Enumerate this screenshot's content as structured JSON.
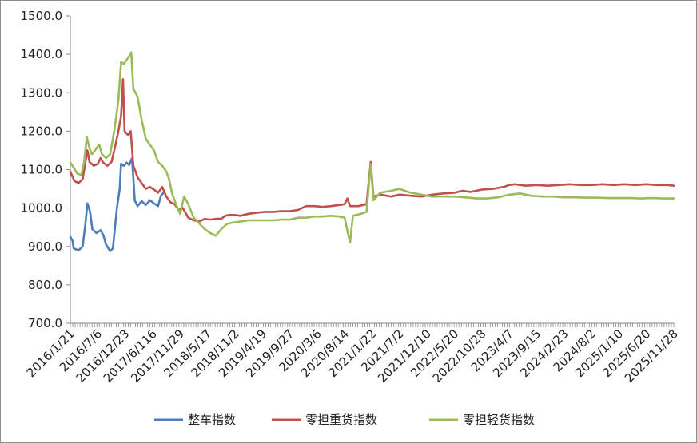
{
  "chart_data": {
    "type": "line",
    "title": "",
    "xlabel": "",
    "ylabel": "",
    "ylim": [
      700,
      1500
    ],
    "yticks": [
      "700.0",
      "800.0",
      "900.0",
      "1000.0",
      "1100.0",
      "1200.0",
      "1300.0",
      "1400.0",
      "1500.0"
    ],
    "xticks": [
      "2016/1/21",
      "2016/7/6",
      "2016/12/23",
      "2017/6/116",
      "2017/11/29",
      "2018/5/17",
      "2018/11/2",
      "2019/4/19",
      "2019/9/27",
      "2020/3/6",
      "2020/8/14",
      "2021/1/22",
      "2021/7/2",
      "2021/12/10",
      "2022/5/20",
      "2022/10/28",
      "2023/4/7",
      "2023/9/15",
      "2024/2/23",
      "2024/8/2",
      "2025/1/10",
      "2025/6/20",
      "2025/11/28"
    ],
    "legend_position": "bottom",
    "grid": false,
    "series": [
      {
        "name": "整车指数",
        "color": "#4a7ebb",
        "points": [
          [
            0,
            925
          ],
          [
            0.08,
            915
          ],
          [
            0.12,
            895
          ],
          [
            0.3,
            890
          ],
          [
            0.45,
            900
          ],
          [
            0.55,
            960
          ],
          [
            0.62,
            1012
          ],
          [
            0.72,
            990
          ],
          [
            0.8,
            945
          ],
          [
            0.95,
            935
          ],
          [
            1.1,
            942
          ],
          [
            1.2,
            930
          ],
          [
            1.3,
            905
          ],
          [
            1.45,
            888
          ],
          [
            1.55,
            895
          ],
          [
            1.7,
            1000
          ],
          [
            1.8,
            1050
          ],
          [
            1.85,
            1115
          ],
          [
            1.95,
            1110
          ],
          [
            2.05,
            1118
          ],
          [
            2.15,
            1112
          ],
          [
            2.25,
            1130
          ],
          [
            2.35,
            1020
          ],
          [
            2.45,
            1005
          ],
          [
            2.6,
            1018
          ],
          [
            2.75,
            1008
          ],
          [
            2.9,
            1020
          ],
          [
            3.05,
            1012
          ],
          [
            3.2,
            1005
          ],
          [
            3.3,
            1032
          ],
          [
            3.4,
            1040
          ]
        ]
      },
      {
        "name": "零担重货指数",
        "color": "#c0504d",
        "points": [
          [
            0,
            1095
          ],
          [
            0.15,
            1070
          ],
          [
            0.3,
            1065
          ],
          [
            0.45,
            1075
          ],
          [
            0.55,
            1120
          ],
          [
            0.62,
            1150
          ],
          [
            0.7,
            1120
          ],
          [
            0.85,
            1110
          ],
          [
            1.0,
            1115
          ],
          [
            1.1,
            1130
          ],
          [
            1.2,
            1118
          ],
          [
            1.35,
            1110
          ],
          [
            1.5,
            1120
          ],
          [
            1.65,
            1165
          ],
          [
            1.75,
            1200
          ],
          [
            1.85,
            1240
          ],
          [
            1.92,
            1335
          ],
          [
            1.98,
            1200
          ],
          [
            2.1,
            1190
          ],
          [
            2.2,
            1200
          ],
          [
            2.3,
            1110
          ],
          [
            2.45,
            1080
          ],
          [
            2.6,
            1065
          ],
          [
            2.75,
            1050
          ],
          [
            2.9,
            1055
          ],
          [
            3.05,
            1048
          ],
          [
            3.2,
            1040
          ],
          [
            3.35,
            1055
          ],
          [
            3.5,
            1030
          ],
          [
            3.65,
            1015
          ],
          [
            3.8,
            1010
          ],
          [
            3.95,
            995
          ],
          [
            4.1,
            1000
          ],
          [
            4.3,
            975
          ],
          [
            4.5,
            968
          ],
          [
            4.7,
            965
          ],
          [
            4.9,
            972
          ],
          [
            5.1,
            970
          ],
          [
            5.3,
            972
          ],
          [
            5.5,
            972
          ],
          [
            5.65,
            980
          ],
          [
            5.8,
            982
          ],
          [
            6.0,
            982
          ],
          [
            6.2,
            980
          ],
          [
            6.5,
            985
          ],
          [
            6.8,
            988
          ],
          [
            7.1,
            990
          ],
          [
            7.4,
            990
          ],
          [
            7.7,
            992
          ],
          [
            8.0,
            992
          ],
          [
            8.3,
            995
          ],
          [
            8.6,
            1005
          ],
          [
            8.9,
            1005
          ],
          [
            9.2,
            1003
          ],
          [
            9.5,
            1005
          ],
          [
            9.8,
            1008
          ],
          [
            10.0,
            1010
          ],
          [
            10.1,
            1025
          ],
          [
            10.2,
            1005
          ],
          [
            10.5,
            1005
          ],
          [
            10.8,
            1010
          ],
          [
            10.95,
            1120
          ],
          [
            11.05,
            1030
          ],
          [
            11.3,
            1035
          ],
          [
            11.7,
            1030
          ],
          [
            12.0,
            1035
          ],
          [
            12.4,
            1032
          ],
          [
            12.8,
            1030
          ],
          [
            13.2,
            1035
          ],
          [
            13.6,
            1038
          ],
          [
            14.0,
            1040
          ],
          [
            14.3,
            1045
          ],
          [
            14.6,
            1042
          ],
          [
            15.0,
            1048
          ],
          [
            15.4,
            1050
          ],
          [
            15.8,
            1055
          ],
          [
            16.0,
            1060
          ],
          [
            16.2,
            1062
          ],
          [
            16.6,
            1058
          ],
          [
            17.0,
            1060
          ],
          [
            17.4,
            1058
          ],
          [
            17.8,
            1060
          ],
          [
            18.2,
            1062
          ],
          [
            18.6,
            1060
          ],
          [
            19.0,
            1060
          ],
          [
            19.4,
            1062
          ],
          [
            19.8,
            1060
          ],
          [
            20.2,
            1062
          ],
          [
            20.6,
            1060
          ],
          [
            21.0,
            1062
          ],
          [
            21.4,
            1060
          ],
          [
            21.8,
            1060
          ],
          [
            22.0,
            1058
          ]
        ]
      },
      {
        "name": "零担轻货指数",
        "color": "#9bbb59",
        "points": [
          [
            0,
            1118
          ],
          [
            0.12,
            1105
          ],
          [
            0.25,
            1090
          ],
          [
            0.4,
            1085
          ],
          [
            0.5,
            1120
          ],
          [
            0.6,
            1185
          ],
          [
            0.68,
            1160
          ],
          [
            0.78,
            1140
          ],
          [
            0.9,
            1150
          ],
          [
            1.05,
            1165
          ],
          [
            1.15,
            1140
          ],
          [
            1.3,
            1130
          ],
          [
            1.45,
            1140
          ],
          [
            1.6,
            1200
          ],
          [
            1.75,
            1280
          ],
          [
            1.85,
            1380
          ],
          [
            1.95,
            1375
          ],
          [
            2.05,
            1385
          ],
          [
            2.15,
            1395
          ],
          [
            2.22,
            1405
          ],
          [
            2.3,
            1310
          ],
          [
            2.45,
            1290
          ],
          [
            2.6,
            1230
          ],
          [
            2.75,
            1180
          ],
          [
            2.9,
            1165
          ],
          [
            3.05,
            1150
          ],
          [
            3.2,
            1120
          ],
          [
            3.35,
            1110
          ],
          [
            3.5,
            1095
          ],
          [
            3.6,
            1075
          ],
          [
            3.7,
            1040
          ],
          [
            3.85,
            1010
          ],
          [
            4.0,
            985
          ],
          [
            4.15,
            1030
          ],
          [
            4.3,
            1010
          ],
          [
            4.5,
            975
          ],
          [
            4.7,
            960
          ],
          [
            4.9,
            945
          ],
          [
            5.1,
            935
          ],
          [
            5.3,
            928
          ],
          [
            5.5,
            945
          ],
          [
            5.7,
            958
          ],
          [
            5.9,
            962
          ],
          [
            6.2,
            965
          ],
          [
            6.5,
            968
          ],
          [
            6.8,
            968
          ],
          [
            7.1,
            968
          ],
          [
            7.4,
            968
          ],
          [
            7.7,
            970
          ],
          [
            8.0,
            970
          ],
          [
            8.3,
            975
          ],
          [
            8.6,
            975
          ],
          [
            8.9,
            978
          ],
          [
            9.2,
            978
          ],
          [
            9.5,
            980
          ],
          [
            9.8,
            978
          ],
          [
            10.0,
            975
          ],
          [
            10.1,
            940
          ],
          [
            10.2,
            910
          ],
          [
            10.3,
            980
          ],
          [
            10.6,
            985
          ],
          [
            10.8,
            990
          ],
          [
            10.95,
            1115
          ],
          [
            11.05,
            1020
          ],
          [
            11.3,
            1040
          ],
          [
            11.7,
            1045
          ],
          [
            12.0,
            1050
          ],
          [
            12.4,
            1040
          ],
          [
            12.8,
            1035
          ],
          [
            13.2,
            1030
          ],
          [
            13.6,
            1030
          ],
          [
            14.0,
            1030
          ],
          [
            14.4,
            1028
          ],
          [
            14.8,
            1025
          ],
          [
            15.2,
            1025
          ],
          [
            15.6,
            1028
          ],
          [
            16.0,
            1035
          ],
          [
            16.4,
            1038
          ],
          [
            16.8,
            1032
          ],
          [
            17.2,
            1030
          ],
          [
            17.6,
            1030
          ],
          [
            18.0,
            1028
          ],
          [
            18.4,
            1028
          ],
          [
            18.8,
            1027
          ],
          [
            19.2,
            1027
          ],
          [
            19.6,
            1026
          ],
          [
            20.0,
            1026
          ],
          [
            20.4,
            1026
          ],
          [
            20.8,
            1025
          ],
          [
            21.2,
            1026
          ],
          [
            21.6,
            1025
          ],
          [
            22.0,
            1025
          ]
        ]
      }
    ]
  }
}
